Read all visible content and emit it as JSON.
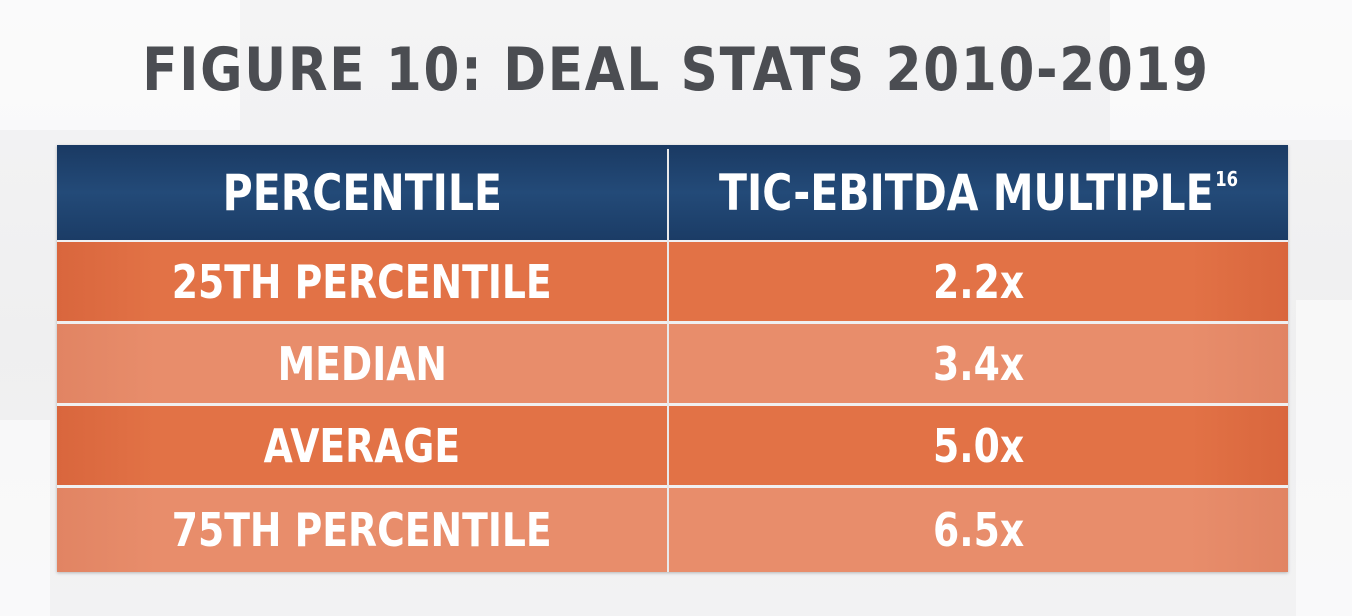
{
  "chart_data": {
    "type": "table",
    "title": "FIGURE 10: DEAL STATS 2010-2019",
    "columns": [
      "PERCENTILE",
      "TIC-EBITDA MULTIPLE"
    ],
    "header_superscript": "16",
    "rows": [
      {
        "label": "25TH PERCENTILE",
        "value": "2.2x"
      },
      {
        "label": "MEDIAN",
        "value": "3.4x"
      },
      {
        "label": "AVERAGE",
        "value": "5.0x"
      },
      {
        "label": "75TH PERCENTILE",
        "value": "6.5x"
      }
    ]
  },
  "colors": {
    "header_bg": "#1f436f",
    "row_dark": "#e27246",
    "row_light": "#e88d6b",
    "title_text": "#4b4d52",
    "cell_text": "#ffffff"
  }
}
